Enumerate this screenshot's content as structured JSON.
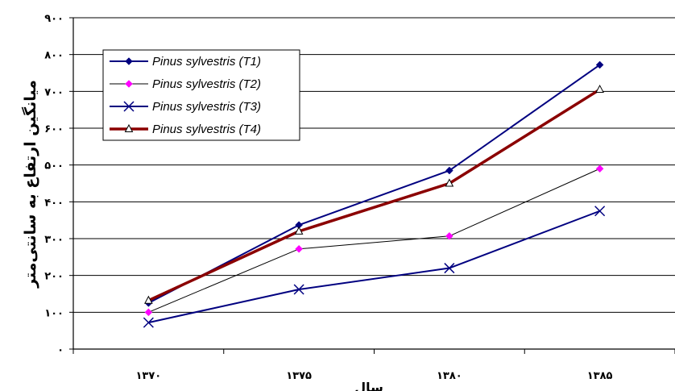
{
  "chart_data": {
    "type": "line",
    "title": "",
    "xlabel": "سال",
    "ylabel": "میانگین ارتفاع به سانتی‌متر",
    "categories": [
      "۱۳۷۰",
      "۱۳۷۵",
      "۱۳۸۰",
      "۱۳۸۵"
    ],
    "yticks": [
      "۰",
      "۱۰۰",
      "۲۰۰",
      "۳۰۰",
      "۴۰۰",
      "۵۰۰",
      "۶۰۰",
      "۷۰۰",
      "۸۰۰",
      "۹۰۰"
    ],
    "ylim": [
      0,
      900
    ],
    "grid": true,
    "legend_position": "top-left",
    "series": [
      {
        "name": "Pinus sylvestris (T1)",
        "values": [
          125,
          337,
          485,
          772
        ],
        "color": "#000080",
        "marker": "diamond",
        "line_width": 2
      },
      {
        "name": "Pinus sylvestris (T2)",
        "values": [
          100,
          272,
          307,
          490
        ],
        "color": "#000000",
        "marker_color": "#ff00ff",
        "marker": "diamond",
        "line_width": 1
      },
      {
        "name": "Pinus sylvestris (T3)",
        "values": [
          72,
          162,
          220,
          375
        ],
        "color": "#000080",
        "marker": "x",
        "line_width": 2
      },
      {
        "name": "Pinus sylvestris (T4)",
        "values": [
          132,
          320,
          450,
          705
        ],
        "color": "#8b0000",
        "marker_color": "#000000",
        "marker": "triangle",
        "line_width": 3.5
      }
    ]
  }
}
